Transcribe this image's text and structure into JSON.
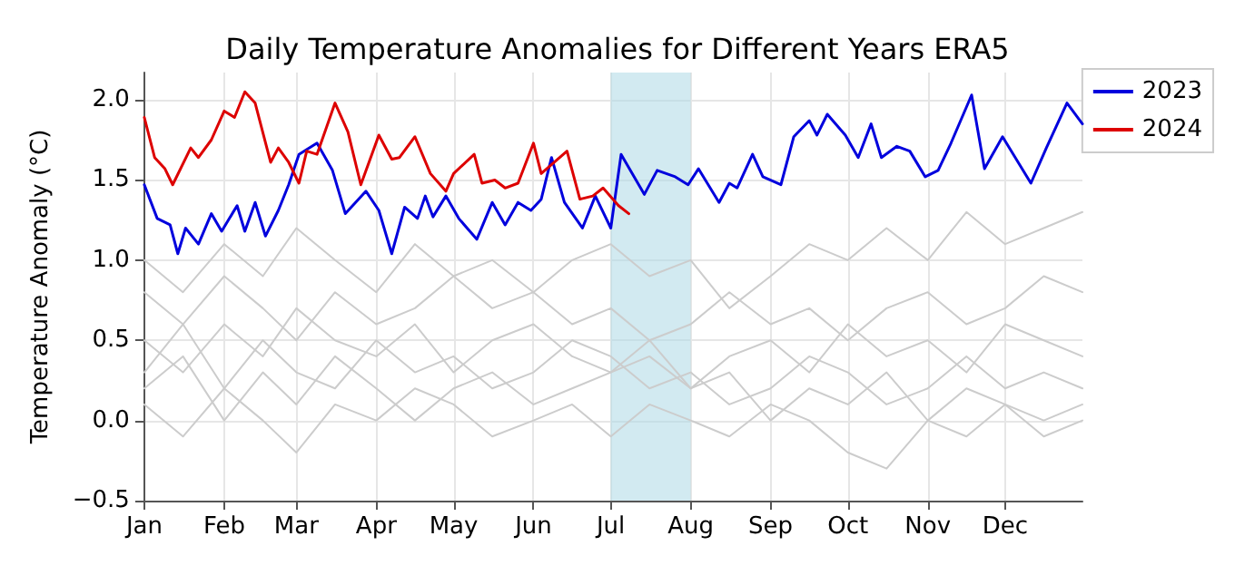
{
  "chart_data": {
    "type": "line",
    "title": "Daily Temperature Anomalies for Different Years ERA5",
    "ylabel": "Temperature Anomaly (°C)",
    "x": [
      "--01-01",
      "--01-16",
      "--02-01",
      "--02-16",
      "--03-01",
      "--03-16",
      "--04-01",
      "--04-16",
      "--05-01",
      "--05-16",
      "--06-01",
      "--06-16",
      "--07-01",
      "--07-16",
      "--08-01",
      "--08-16",
      "--09-01",
      "--09-16",
      "--10-01",
      "--10-16",
      "--11-01",
      "--11-16",
      "--12-01",
      "--12-16",
      "--12-31"
    ],
    "series": [
      {
        "color": "#cccccc",
        "values": [
          0.5,
          0.3,
          0.6,
          0.4,
          0.7,
          0.5,
          0.4,
          0.6,
          0.3,
          0.5,
          0.6,
          0.4,
          0.3,
          0.5,
          0.2,
          0.4,
          0.5,
          0.3,
          0.6,
          0.4,
          0.5,
          0.3,
          0.6,
          0.5,
          0.4
        ]
      },
      {
        "color": "#cccccc",
        "values": [
          0.1,
          -0.1,
          0.2,
          0.0,
          -0.2,
          0.1,
          0.0,
          0.2,
          0.1,
          -0.1,
          0.0,
          0.1,
          -0.1,
          0.1,
          0.0,
          -0.1,
          0.1,
          0.0,
          -0.2,
          -0.3,
          0.0,
          -0.1,
          0.1,
          -0.1,
          0.0
        ]
      },
      {
        "color": "#cccccc",
        "values": [
          1.0,
          0.8,
          1.1,
          0.9,
          1.2,
          1.0,
          0.8,
          1.1,
          0.9,
          1.0,
          0.8,
          1.0,
          1.1,
          0.9,
          1.0,
          0.7,
          0.9,
          1.1,
          1.0,
          1.2,
          1.0,
          1.3,
          1.1,
          1.2,
          1.3
        ]
      },
      {
        "color": "#cccccc",
        "values": [
          0.3,
          0.6,
          0.2,
          0.5,
          0.3,
          0.2,
          0.5,
          0.3,
          0.4,
          0.2,
          0.3,
          0.5,
          0.4,
          0.2,
          0.3,
          0.1,
          0.2,
          0.4,
          0.3,
          0.1,
          0.2,
          0.4,
          0.2,
          0.3,
          0.2
        ]
      },
      {
        "color": "#cccccc",
        "values": [
          0.8,
          0.6,
          0.9,
          0.7,
          0.5,
          0.8,
          0.6,
          0.7,
          0.9,
          0.7,
          0.8,
          0.6,
          0.7,
          0.5,
          0.6,
          0.8,
          0.6,
          0.7,
          0.5,
          0.7,
          0.8,
          0.6,
          0.7,
          0.9,
          0.8
        ]
      },
      {
        "color": "#cccccc",
        "values": [
          0.2,
          0.4,
          0.0,
          0.3,
          0.1,
          0.4,
          0.2,
          0.0,
          0.2,
          0.3,
          0.1,
          0.2,
          0.3,
          0.4,
          0.2,
          0.3,
          0.0,
          0.2,
          0.1,
          0.3,
          0.0,
          0.2,
          0.1,
          0.0,
          0.1
        ]
      },
      {
        "name": "2023",
        "color": "#0000dd",
        "x": [
          "--01-01",
          "--01-06",
          "--01-11",
          "--01-14",
          "--01-17",
          "--01-22",
          "--01-27",
          "--01-31",
          "--02-06",
          "--02-09",
          "--02-13",
          "--02-17",
          "--02-22",
          "--02-26",
          "--03-02",
          "--03-09",
          "--03-15",
          "--03-20",
          "--03-28",
          "--04-02",
          "--04-07",
          "--04-12",
          "--04-17",
          "--04-20",
          "--04-23",
          "--04-28",
          "--05-03",
          "--05-10",
          "--05-16",
          "--05-21",
          "--05-26",
          "--05-31",
          "--06-04",
          "--06-08",
          "--06-13",
          "--06-20",
          "--06-25",
          "--07-01",
          "--07-05",
          "--07-14",
          "--07-19",
          "--07-26",
          "--07-31",
          "--08-04",
          "--08-12",
          "--08-16",
          "--08-19",
          "--08-25",
          "--08-29",
          "--09-05",
          "--09-10",
          "--09-16",
          "--09-19",
          "--09-23",
          "--09-30",
          "--10-05",
          "--10-10",
          "--10-14",
          "--10-20",
          "--10-25",
          "--10-31",
          "--11-05",
          "--11-10",
          "--11-18",
          "--11-23",
          "--11-30",
          "--12-11",
          "--12-17",
          "--12-25",
          "--12-31"
        ],
        "values": [
          1.47,
          1.26,
          1.22,
          1.04,
          1.2,
          1.1,
          1.29,
          1.18,
          1.34,
          1.18,
          1.36,
          1.15,
          1.31,
          1.47,
          1.66,
          1.73,
          1.56,
          1.29,
          1.43,
          1.31,
          1.04,
          1.33,
          1.26,
          1.4,
          1.27,
          1.4,
          1.26,
          1.13,
          1.36,
          1.22,
          1.36,
          1.31,
          1.38,
          1.64,
          1.36,
          1.2,
          1.4,
          1.2,
          1.66,
          1.41,
          1.56,
          1.52,
          1.47,
          1.57,
          1.36,
          1.48,
          1.45,
          1.66,
          1.52,
          1.47,
          1.77,
          1.87,
          1.78,
          1.91,
          1.78,
          1.64,
          1.85,
          1.64,
          1.71,
          1.68,
          1.52,
          1.56,
          1.73,
          2.03,
          1.57,
          1.77,
          1.48,
          1.7,
          1.98,
          1.85
        ]
      },
      {
        "name": "2024",
        "color": "#dd0000",
        "x": [
          "--01-01",
          "--01-05",
          "--01-09",
          "--01-12",
          "--01-19",
          "--01-22",
          "--01-27",
          "--02-01",
          "--02-05",
          "--02-09",
          "--02-13",
          "--02-19",
          "--02-22",
          "--02-26",
          "--03-02",
          "--03-05",
          "--03-09",
          "--03-16",
          "--03-21",
          "--03-26",
          "--04-02",
          "--04-07",
          "--04-10",
          "--04-16",
          "--04-22",
          "--04-28",
          "--05-01",
          "--05-09",
          "--05-12",
          "--05-17",
          "--05-21",
          "--05-26",
          "--06-01",
          "--06-04",
          "--06-14",
          "--06-19",
          "--06-24",
          "--06-28",
          "--07-04",
          "--07-08"
        ],
        "values": [
          1.89,
          1.64,
          1.57,
          1.47,
          1.7,
          1.64,
          1.75,
          1.93,
          1.89,
          2.05,
          1.98,
          1.61,
          1.7,
          1.61,
          1.48,
          1.68,
          1.66,
          1.98,
          1.8,
          1.47,
          1.78,
          1.63,
          1.64,
          1.77,
          1.54,
          1.43,
          1.54,
          1.66,
          1.48,
          1.5,
          1.45,
          1.48,
          1.73,
          1.54,
          1.68,
          1.38,
          1.4,
          1.45,
          1.34,
          1.29
        ]
      }
    ],
    "xlim": [
      "--01-01",
      "--12-31"
    ],
    "xticks": [
      {
        "value": "--01-01",
        "label": "Jan"
      },
      {
        "value": "--02-01",
        "label": "Feb"
      },
      {
        "value": "--03-01",
        "label": "Mar"
      },
      {
        "value": "--04-01",
        "label": "Apr"
      },
      {
        "value": "--05-01",
        "label": "May"
      },
      {
        "value": "--06-01",
        "label": "Jun"
      },
      {
        "value": "--07-01",
        "label": "Jul"
      },
      {
        "value": "--08-01",
        "label": "Aug"
      },
      {
        "value": "--09-01",
        "label": "Sep"
      },
      {
        "value": "--10-01",
        "label": "Oct"
      },
      {
        "value": "--11-01",
        "label": "Nov"
      },
      {
        "value": "--12-01",
        "label": "Dec"
      }
    ],
    "ylim": [
      -0.5,
      2.17
    ],
    "yticks": [
      {
        "value": -0.5,
        "label": "−0.5"
      },
      {
        "value": 0,
        "label": "0.0"
      },
      {
        "value": 0.5,
        "label": "0.5"
      },
      {
        "value": 1,
        "label": "1.0"
      },
      {
        "value": 1.5,
        "label": "1.5"
      },
      {
        "value": 2,
        "label": "2.0"
      }
    ],
    "bands": [
      {
        "axis": "x",
        "from": "--07-01",
        "to": "--08-01",
        "color": "#add8e6"
      }
    ],
    "grid": true,
    "legend": "top right",
    "marker": "none",
    "line_style": "solid"
  }
}
